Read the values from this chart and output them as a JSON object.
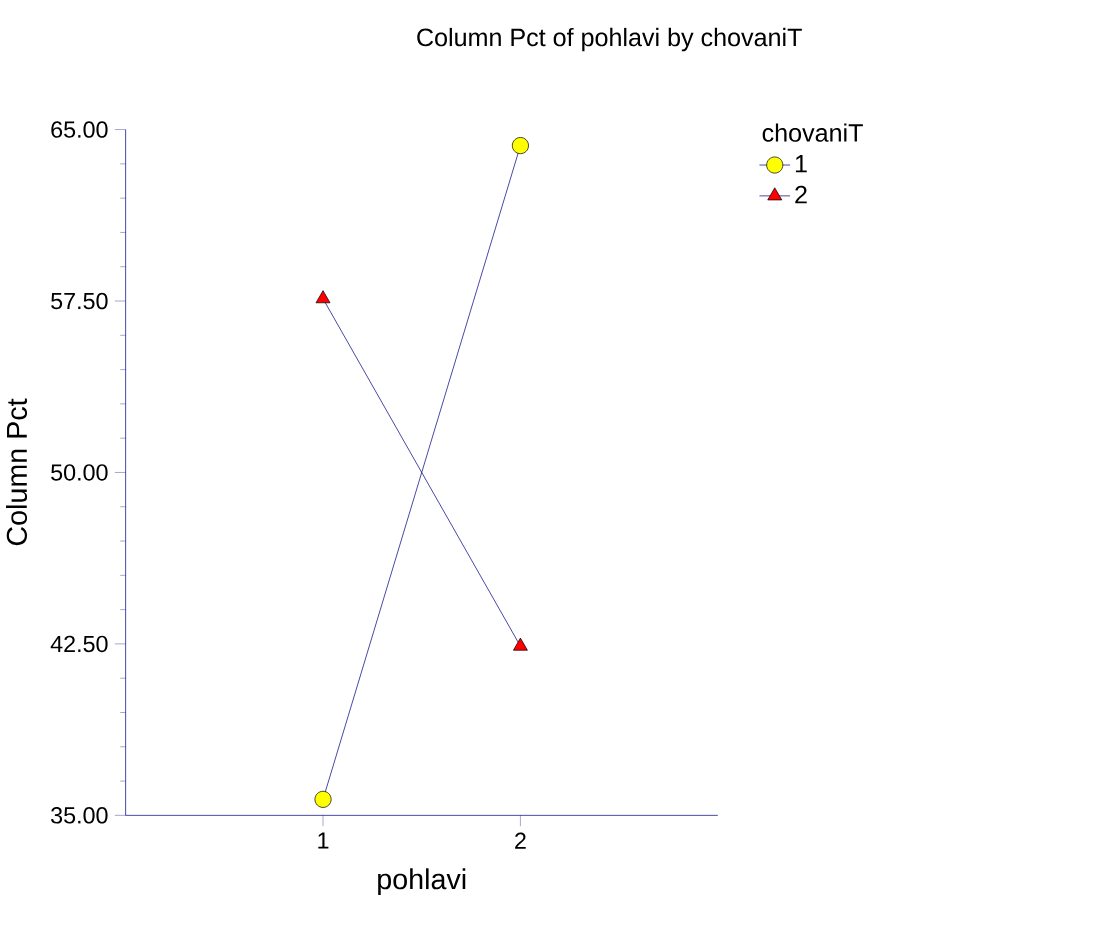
{
  "chart_data": {
    "type": "line",
    "title": "Column Pct of pohlavi by chovaniT",
    "xlabel": "pohlavi",
    "ylabel": "Column Pct",
    "legend_title": "chovaniT",
    "legend": "top right",
    "categories": [
      "1",
      "2"
    ],
    "series": [
      {
        "name": "1",
        "color": "#ffff00",
        "marker": "circle",
        "values": [
          35.7,
          64.3
        ]
      },
      {
        "name": "2",
        "color": "#ff0000",
        "marker": "triangle",
        "values": [
          57.6,
          42.4
        ]
      }
    ],
    "ylim": [
      35,
      65
    ],
    "yticks": [
      {
        "value": 35,
        "label": "35.00"
      },
      {
        "value": 42.5,
        "label": "42.50"
      },
      {
        "value": 50,
        "label": "50.00"
      },
      {
        "value": 57.5,
        "label": "57.50"
      },
      {
        "value": 65,
        "label": "65.00"
      }
    ],
    "grid": false
  }
}
